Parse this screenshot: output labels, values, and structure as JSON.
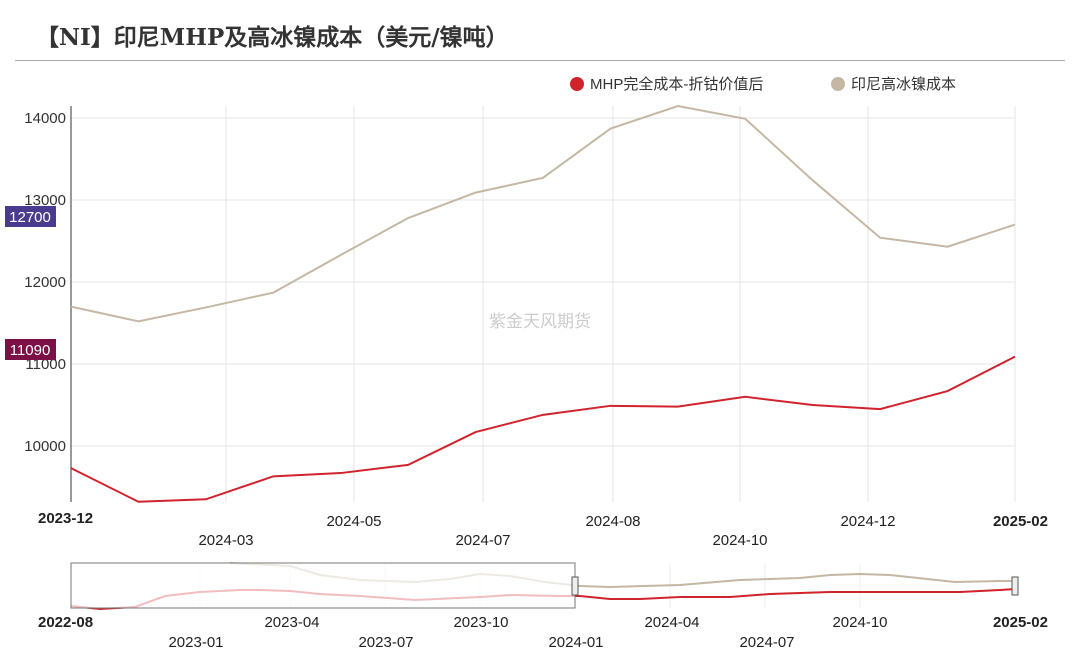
{
  "title": "【NI】印尼MHP及高冰镍成本（美元/镍吨）",
  "watermark": "紫金天风期货",
  "chart_data": {
    "type": "line",
    "title": "【NI】印尼MHP及高冰镍成本（美元/镍吨）",
    "x": [
      "2023-12",
      "2024-01",
      "2024-02",
      "2024-03",
      "2024-04",
      "2024-05",
      "2024-06",
      "2024-07",
      "2024-08",
      "2024-09",
      "2024-10",
      "2024-11",
      "2024-12",
      "2025-01",
      "2025-02"
    ],
    "series": [
      {
        "name": "MHP完全成本-折钴价值后",
        "color": "#d0232b",
        "values": [
          9730,
          9320,
          9350,
          9630,
          9670,
          9770,
          10170,
          10380,
          10490,
          10480,
          10600,
          10500,
          10450,
          10670,
          11090
        ]
      },
      {
        "name": "印尼高冰镍成本",
        "color": "#c4b8a4",
        "values": [
          11700,
          11520,
          11690,
          11870,
          12330,
          12780,
          13090,
          13270,
          13870,
          14150,
          13990,
          13240,
          12540,
          12430,
          12700
        ]
      }
    ],
    "ylim": [
      9320,
      14150
    ],
    "yticks": [
      10000,
      11000,
      12000,
      13000,
      14000
    ],
    "xtick_labels": [
      "2023-12",
      "2024-03",
      "2024-05",
      "2024-07",
      "2024-08",
      "2024-10",
      "2024-12",
      "2025-02"
    ],
    "last_value_labels": [
      {
        "value": "12700",
        "color": "#4b3b8f"
      },
      {
        "value": "11090",
        "color": "#7a1046"
      }
    ],
    "navigator": {
      "labels": [
        "2022-08",
        "2023-01",
        "2023-04",
        "2023-07",
        "2023-10",
        "2024-01",
        "2024-04",
        "2024-07",
        "2024-10",
        "2025-02"
      ]
    },
    "legend": "top-right",
    "grid": true
  }
}
